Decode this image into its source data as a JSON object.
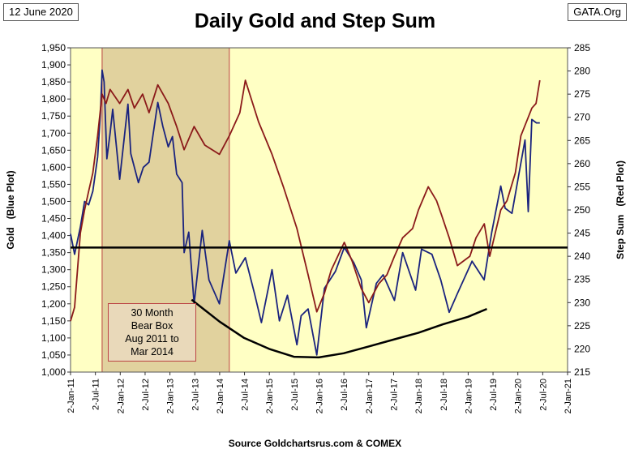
{
  "header": {
    "date": "12 June 2020",
    "site": "GATA.Org"
  },
  "chart_data": {
    "type": "line",
    "title": "Daily Gold and Step Sum",
    "source": "Source Goldchartsrus.com & COMEX",
    "ylabel_left": "Gold   (Blue Plot)",
    "ylabel_right": "Step Sum   (Red Plot)",
    "ylim_left": [
      1000,
      1950
    ],
    "ylim_right": [
      215,
      285
    ],
    "yticks_left": [
      1000,
      1050,
      1100,
      1150,
      1200,
      1250,
      1300,
      1350,
      1400,
      1450,
      1500,
      1550,
      1600,
      1650,
      1700,
      1750,
      1800,
      1850,
      1900,
      1950
    ],
    "yticks_left_labels": [
      "1,000",
      "1,050",
      "1,100",
      "1,150",
      "1,200",
      "1,250",
      "1,300",
      "1,350",
      "1,400",
      "1,450",
      "1,500",
      "1,550",
      "1,600",
      "1,650",
      "1,700",
      "1,750",
      "1,800",
      "1,850",
      "1,900",
      "1,950"
    ],
    "yticks_right": [
      215,
      220,
      225,
      230,
      235,
      240,
      245,
      250,
      255,
      260,
      265,
      270,
      275,
      280,
      285
    ],
    "xtick_labels": [
      "2-Jan-11",
      "2-Jul-11",
      "2-Jan-12",
      "2-Jul-12",
      "2-Jan-13",
      "2-Jul-13",
      "2-Jan-14",
      "2-Jul-14",
      "2-Jan-15",
      "2-Jul-15",
      "2-Jan-16",
      "2-Jul-16",
      "2-Jan-17",
      "2-Jul-17",
      "2-Jan-18",
      "2-Jul-18",
      "2-Jan-19",
      "2-Jul-19",
      "2-Jan-20",
      "2-Jul-20",
      "2-Jan-21"
    ],
    "xlim": [
      "2011-01-02",
      "2021-01-02"
    ],
    "grid": false,
    "series": [
      {
        "name": "Gold",
        "axis": "left",
        "color": "#1a237e",
        "x": [
          "2011-01-02",
          "2011-02-01",
          "2011-03-15",
          "2011-04-15",
          "2011-05-15",
          "2011-06-15",
          "2011-07-20",
          "2011-08-10",
          "2011-08-22",
          "2011-09-06",
          "2011-09-26",
          "2011-10-20",
          "2011-11-08",
          "2011-12-29",
          "2012-02-28",
          "2012-03-20",
          "2012-05-15",
          "2012-06-20",
          "2012-08-01",
          "2012-10-04",
          "2012-11-10",
          "2012-12-20",
          "2013-01-20",
          "2013-02-20",
          "2013-04-01",
          "2013-04-16",
          "2013-05-20",
          "2013-06-28",
          "2013-08-27",
          "2013-10-15",
          "2013-12-31",
          "2014-03-14",
          "2014-05-01",
          "2014-07-10",
          "2014-09-15",
          "2014-11-05",
          "2015-01-22",
          "2015-03-17",
          "2015-05-15",
          "2015-07-24",
          "2015-08-24",
          "2015-10-14",
          "2015-12-17",
          "2016-02-11",
          "2016-05-02",
          "2016-07-06",
          "2016-09-15",
          "2016-11-08",
          "2016-12-15",
          "2017-02-27",
          "2017-04-17",
          "2017-07-10",
          "2017-09-08",
          "2017-12-12",
          "2018-01-25",
          "2018-04-11",
          "2018-06-15",
          "2018-08-16",
          "2018-10-15",
          "2019-01-31",
          "2019-04-30",
          "2019-06-25",
          "2019-08-30",
          "2019-10-01",
          "2019-11-20",
          "2020-01-08",
          "2020-02-24",
          "2020-03-19",
          "2020-04-14",
          "2020-05-18",
          "2020-06-12"
        ],
        "values": [
          1405,
          1345,
          1425,
          1500,
          1490,
          1530,
          1630,
          1760,
          1885,
          1850,
          1625,
          1700,
          1770,
          1565,
          1785,
          1640,
          1555,
          1600,
          1615,
          1790,
          1720,
          1660,
          1690,
          1580,
          1555,
          1350,
          1410,
          1200,
          1415,
          1270,
          1200,
          1385,
          1290,
          1335,
          1230,
          1145,
          1300,
          1150,
          1225,
          1080,
          1165,
          1185,
          1050,
          1245,
          1295,
          1365,
          1320,
          1270,
          1130,
          1260,
          1285,
          1210,
          1350,
          1240,
          1360,
          1345,
          1270,
          1175,
          1230,
          1325,
          1270,
          1410,
          1545,
          1480,
          1465,
          1575,
          1680,
          1470,
          1740,
          1730,
          1730
        ]
      },
      {
        "name": "Step Sum",
        "axis": "right",
        "color": "#8b1a1a",
        "x": [
          "2011-01-02",
          "2011-02-01",
          "2011-03-15",
          "2011-04-15",
          "2011-05-15",
          "2011-06-15",
          "2011-07-20",
          "2011-08-22",
          "2011-09-20",
          "2011-10-20",
          "2011-12-29",
          "2012-02-28",
          "2012-04-15",
          "2012-06-15",
          "2012-08-01",
          "2012-10-04",
          "2012-12-20",
          "2013-02-20",
          "2013-04-16",
          "2013-06-28",
          "2013-09-15",
          "2013-12-31",
          "2014-03-14",
          "2014-05-30",
          "2014-07-10",
          "2014-10-15",
          "2015-01-22",
          "2015-04-15",
          "2015-07-24",
          "2015-10-14",
          "2015-12-17",
          "2016-02-11",
          "2016-04-01",
          "2016-07-06",
          "2016-09-01",
          "2016-11-08",
          "2017-01-02",
          "2017-03-15",
          "2017-05-15",
          "2017-07-10",
          "2017-09-08",
          "2017-11-20",
          "2018-01-02",
          "2018-03-15",
          "2018-05-15",
          "2018-06-20",
          "2018-08-16",
          "2018-10-15",
          "2019-01-15",
          "2019-03-01",
          "2019-05-01",
          "2019-06-10",
          "2019-08-30",
          "2019-10-15",
          "2019-12-15",
          "2020-01-25",
          "2020-03-19",
          "2020-04-15",
          "2020-05-15",
          "2020-06-12"
        ],
        "values": [
          226,
          229,
          245,
          250,
          254,
          258,
          266,
          275,
          273,
          276,
          273,
          276,
          272,
          275,
          271,
          277,
          273,
          268,
          263,
          268,
          264,
          262,
          266,
          271,
          278,
          269,
          262,
          255,
          246,
          236,
          228,
          232,
          237,
          243,
          239,
          233,
          230,
          234,
          236,
          240,
          244,
          246,
          250,
          255,
          252,
          249,
          244,
          238,
          240,
          244,
          247,
          240,
          250,
          252,
          258,
          266,
          270,
          272,
          273,
          278
        ]
      }
    ],
    "reference_line": {
      "axis": "left",
      "value": 1365
    },
    "trend_curve": {
      "axis": "left",
      "x": [
        "2013-06-10",
        "2014-01-01",
        "2014-07-01",
        "2015-01-01",
        "2015-07-01",
        "2016-01-01",
        "2016-07-01",
        "2017-01-01",
        "2017-07-01",
        "2018-01-01",
        "2018-07-01",
        "2019-01-01",
        "2019-05-20"
      ],
      "values": [
        1212,
        1148,
        1100,
        1068,
        1045,
        1043,
        1055,
        1075,
        1095,
        1115,
        1140,
        1162,
        1185
      ]
    },
    "bear_box": {
      "x_start": "2011-08-22",
      "x_end": "2014-03-14",
      "color": "#c8ad7f",
      "label": "30 Month\nBear Box\nAug 2011 to\nMar 2014"
    },
    "plot_background": "#ffffc4"
  }
}
